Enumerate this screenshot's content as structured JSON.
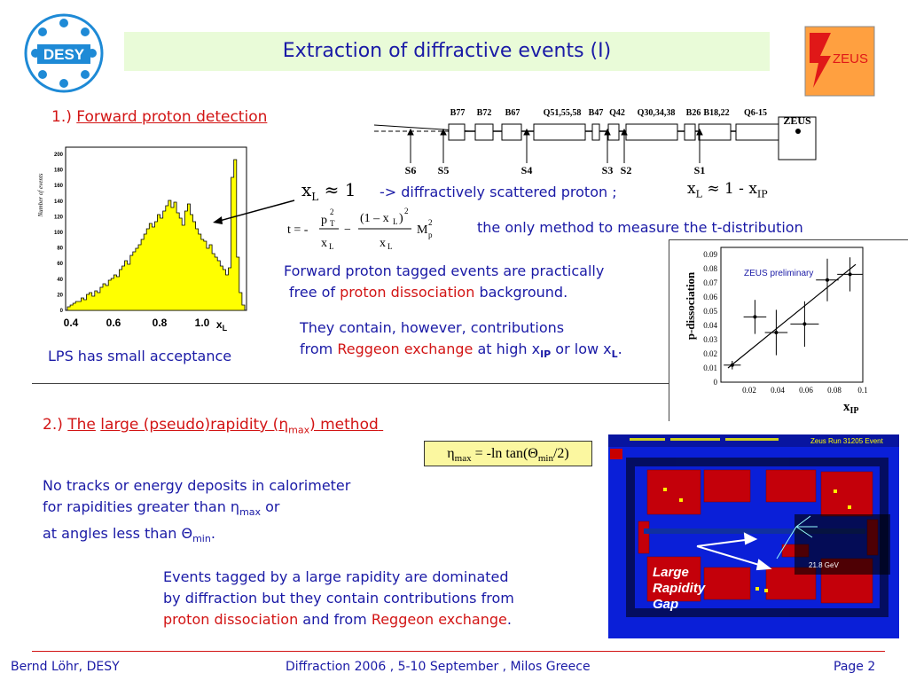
{
  "title": "Extraction of diffractive events (I)",
  "desy_logo": "DESY",
  "zeus_logo": "ZEUS",
  "section1": {
    "number": "1.)",
    "heading": "Forward proton detection"
  },
  "beamline": {
    "magnets": [
      "B77",
      "B72",
      "B67",
      "Q51,55,58",
      "B47",
      "Q42",
      "Q30,34,38",
      "B26",
      "B18,22",
      "Q6-15"
    ],
    "stations": [
      "S6",
      "S5",
      "S4",
      "S3",
      "S2",
      "S1"
    ],
    "detector": "ZEUS"
  },
  "eq_xl": {
    "var": "x",
    "sub": "L",
    "rel": "≈ 1"
  },
  "arrow_text": "->  diffractively scattered proton ;",
  "eq_xl2": {
    "var": "x",
    "sub": "L",
    "rel": "≈ 1 - x",
    "sub2": "IP"
  },
  "t_formula": {
    "lhs": "t = -",
    "num1": "p",
    "num1_sup": "2",
    "num1_sub": "T",
    "den1": "x",
    "den1_sub": "L",
    "minus": "−",
    "num2": "(1 – x",
    "num2_sub": "L",
    "num2_close": ")",
    "num2_sup": "2",
    "den2": "x",
    "den2_sub": "L",
    "mass": "M",
    "mass_sup": "2",
    "mass_sub": "p"
  },
  "t_note": "the only method to measure the t-distribution",
  "histogram": {
    "ylabel": "Number of events",
    "yticks": [
      "200",
      "180",
      "160",
      "140",
      "120",
      "100",
      "80",
      "60",
      "40",
      "20",
      "0"
    ],
    "xticks": [
      "0.4",
      "0.6",
      "0.8",
      "1.0"
    ],
    "xlabel": "x",
    "xlabel_sub": "L",
    "color": "#ffff00"
  },
  "lps_note": "LPS has small acceptance",
  "tagged": {
    "line1": "Forward proton tagged events are practically",
    "line2a": "free of ",
    "line2b": "proton dissociation",
    "line2c": " background."
  },
  "contain": {
    "line1": "They contain, however, contributions",
    "line2a": "from ",
    "line2b": "Reggeon exchange",
    "line2c": " at high x",
    "line2c_sub": "IP",
    "line2d": " or low x",
    "line2d_sub": "L",
    "line2e": "."
  },
  "pdiss_chart": {
    "ylabel": "p-dissociation",
    "xlabel": "x",
    "xlabel_sub": "IP",
    "legend": "ZEUS preliminary",
    "yticks": [
      "0.09",
      "0.08",
      "0.07",
      "0.06",
      "0.05",
      "0.04",
      "0.03",
      "0.02",
      "0.01",
      "0"
    ],
    "xticks": [
      "0.02",
      "0.04",
      "0.06",
      "0.08",
      "0.1"
    ]
  },
  "chart_data": {
    "type": "scatter",
    "xlabel": "x_IP",
    "ylabel": "p-dissociation",
    "xlim": [
      0.0,
      0.1
    ],
    "ylim": [
      0.0,
      0.095
    ],
    "series": [
      {
        "name": "ZEUS preliminary",
        "points": [
          {
            "x": 0.008,
            "y": 0.012,
            "xerr": 0.006,
            "yerr": 0.003
          },
          {
            "x": 0.024,
            "y": 0.046,
            "xerr": 0.008,
            "yerr": 0.012
          },
          {
            "x": 0.039,
            "y": 0.035,
            "xerr": 0.008,
            "yerr": 0.016
          },
          {
            "x": 0.059,
            "y": 0.041,
            "xerr": 0.01,
            "yerr": 0.016
          },
          {
            "x": 0.075,
            "y": 0.072,
            "xerr": 0.008,
            "yerr": 0.015
          },
          {
            "x": 0.091,
            "y": 0.076,
            "xerr": 0.009,
            "yerr": 0.012
          }
        ]
      }
    ],
    "fit_line": {
      "x": [
        0.005,
        0.095
      ],
      "y": [
        0.01,
        0.083
      ]
    }
  },
  "section2": {
    "number": "2.)",
    "the": "The",
    "heading_a": "large (pseudo)rapidity (",
    "eta": "η",
    "eta_sub": "max",
    "heading_b": ") method"
  },
  "eta_eq": {
    "eta": "η",
    "sub": "max",
    "rest": " = -ln tan(Θ",
    "sub2": "min",
    "end": "/2)"
  },
  "no_tracks": {
    "line1": "No tracks or energy deposits in calorimeter",
    "line2a": "for rapidities greater than ",
    "line2_eta": "η",
    "line2_sub": "max",
    "line2b": " or",
    "line3a": "at angles less than ",
    "line3_theta": "Θ",
    "line3_sub": "min",
    "line3b": "."
  },
  "events": {
    "line1": "Events tagged by a large rapidity are dominated",
    "line2": "by diffraction but they contain contributions from",
    "line3a": "proton dissociation",
    "line3b": " and  from ",
    "line3c": "Reggeon exchange",
    "line3d": "."
  },
  "event_display": {
    "header_left": "Zeus Run 31205 Event",
    "overlay": [
      "Large",
      "Rapidity",
      "Gap"
    ],
    "energy": "21.8 GeV"
  },
  "footer": {
    "author": "Bernd Löhr, DESY",
    "conference": "Diffraction 2006 ,  5-10 September ,  Milos Greece",
    "page": "Page 2"
  }
}
